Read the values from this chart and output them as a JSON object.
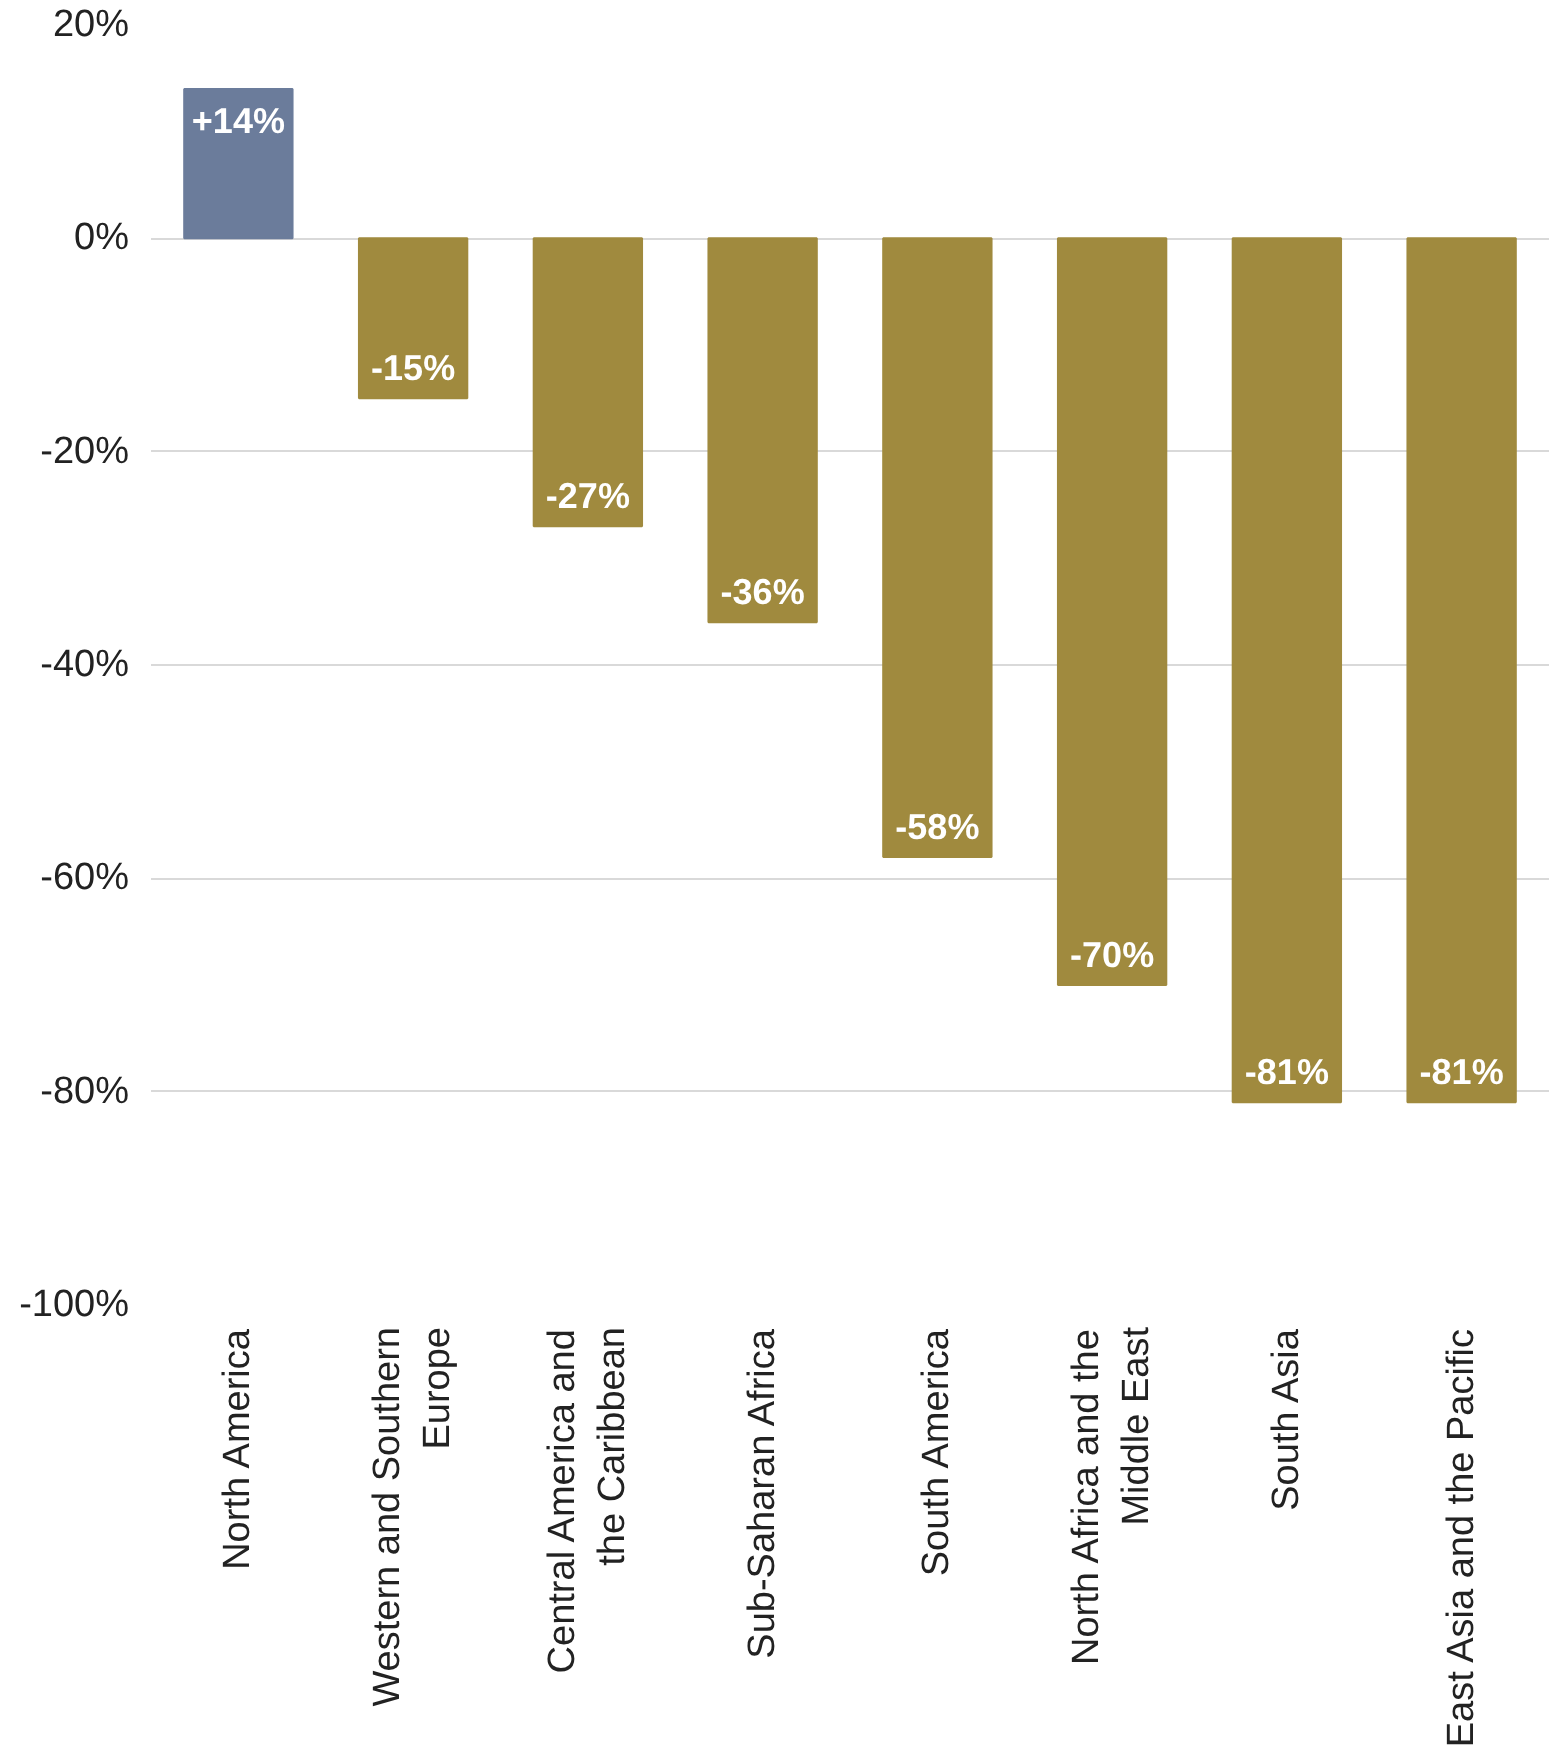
{
  "chart_data": {
    "type": "bar",
    "categories": [
      "North America",
      "Western and Southern\nEurope",
      "Central America and\nthe Caribbean",
      "Sub-Saharan Africa",
      "South America",
      "North Africa and the\nMiddle East",
      "South Asia",
      "East Asia and the Pacific"
    ],
    "values": [
      14,
      -15,
      -27,
      -36,
      -58,
      -70,
      -81,
      -81
    ],
    "colors": [
      "#6b7c9b",
      "#a08a3e",
      "#a08a3e",
      "#a08a3e",
      "#a08a3e",
      "#a08a3e",
      "#a08a3e",
      "#a08a3e"
    ],
    "value_labels": [
      "+14%",
      "-15%",
      "-27%",
      "-36%",
      "-58%",
      "-70%",
      "-81%",
      "-81%"
    ],
    "ylim": [
      -100,
      20
    ],
    "yticks": [
      {
        "value": 20,
        "label": "20%"
      },
      {
        "value": 0,
        "label": "0%"
      },
      {
        "value": -20,
        "label": "-20%"
      },
      {
        "value": -40,
        "label": "-40%"
      },
      {
        "value": -60,
        "label": "-60%"
      },
      {
        "value": -80,
        "label": "-80%"
      },
      {
        "value": -100,
        "label": "-100%"
      }
    ],
    "grid": "y"
  }
}
